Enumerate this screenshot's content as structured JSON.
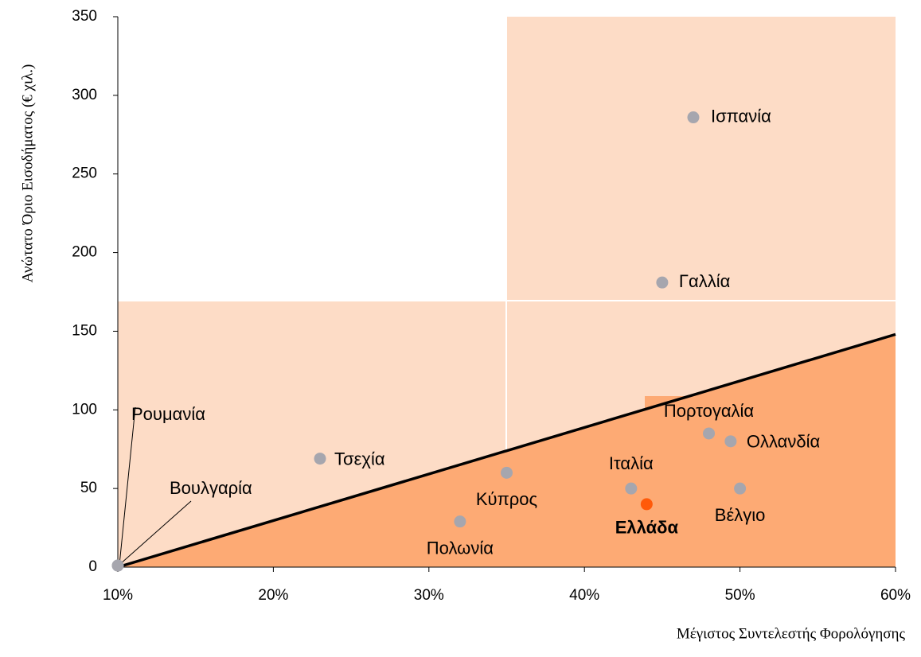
{
  "chart_data": {
    "type": "scatter",
    "xlabel": "Μέγιστος Συντελεστής Φορολόγησης",
    "ylabel": "Ανώτατο Όριο Εισοδήματος (€ χιλ.)",
    "xlim": [
      10,
      60
    ],
    "ylim": [
      0,
      350
    ],
    "xticks": [
      {
        "value": 10,
        "label": "10%"
      },
      {
        "value": 20,
        "label": "20%"
      },
      {
        "value": 30,
        "label": "30%"
      },
      {
        "value": 40,
        "label": "40%"
      },
      {
        "value": 50,
        "label": "50%"
      },
      {
        "value": 60,
        "label": "60%"
      }
    ],
    "yticks": [
      0,
      50,
      100,
      150,
      200,
      250,
      300,
      350
    ],
    "reference_line": {
      "x": [
        10,
        60
      ],
      "y": [
        0,
        148
      ],
      "color": "#000000"
    },
    "points": [
      {
        "name": "Ισπανία",
        "x": 47,
        "y": 286,
        "color": "#a6a6ae"
      },
      {
        "name": "Γαλλία",
        "x": 45,
        "y": 181,
        "color": "#a6a6ae"
      },
      {
        "name": "Πορτογαλία",
        "x": 48,
        "y": 85,
        "color": "#a6a6ae"
      },
      {
        "name": "Ολλανδία",
        "x": 49.4,
        "y": 80,
        "color": "#a6a6ae"
      },
      {
        "name": "Ιταλία",
        "x": 43,
        "y": 50,
        "color": "#a6a6ae"
      },
      {
        "name": "Βέλγιο",
        "x": 50,
        "y": 50,
        "color": "#a6a6ae"
      },
      {
        "name": "Ελλάδα",
        "x": 44,
        "y": 40,
        "color": "#ff5a0a"
      },
      {
        "name": "Κύπρος",
        "x": 35,
        "y": 60,
        "color": "#a6a6ae"
      },
      {
        "name": "Πολωνία",
        "x": 32,
        "y": 29,
        "color": "#a6a6ae"
      },
      {
        "name": "Τσεχία",
        "x": 23,
        "y": 69,
        "color": "#a6a6ae"
      },
      {
        "name": "Ρουμανία",
        "x": 10,
        "y": 1,
        "color": "#a6a6ae"
      },
      {
        "name": "Βουλγαρία",
        "x": 10,
        "y": 1,
        "color": "#a6a6ae"
      }
    ]
  }
}
